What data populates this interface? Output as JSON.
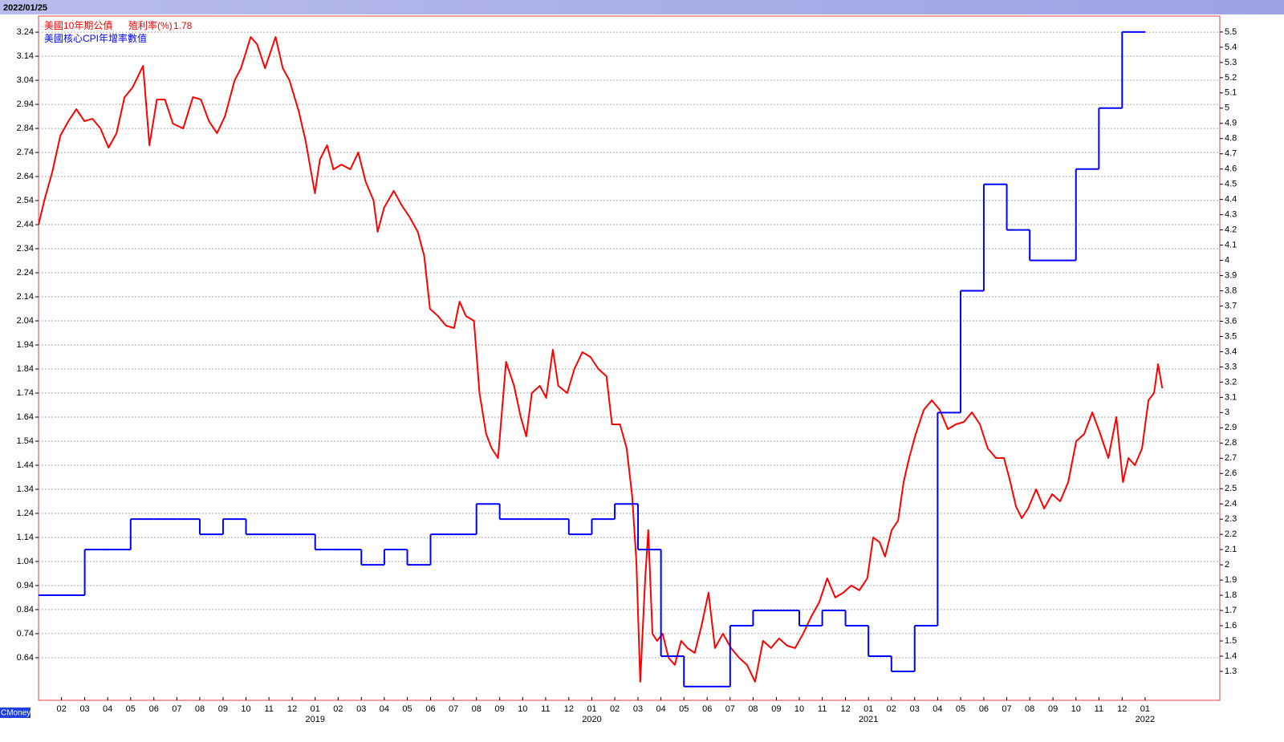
{
  "header": {
    "date": "2022/01/25",
    "brand": "CMoney"
  },
  "chart_data": {
    "type": "line",
    "xlim": [
      2018.0,
      2022.27
    ],
    "ylim": [
      0.463,
      3.307
    ],
    "y2lim": [
      1.11,
      5.605
    ],
    "grid": true,
    "yticks": [
      0.64,
      0.74,
      0.84,
      0.94,
      1.04,
      1.14,
      1.24,
      1.34,
      1.44,
      1.54,
      1.64,
      1.74,
      1.84,
      1.94,
      2.04,
      2.14,
      2.24,
      2.34,
      2.44,
      2.54,
      2.64,
      2.74,
      2.84,
      2.94,
      3.04,
      3.14,
      3.24
    ],
    "y2ticks": [
      1.3,
      1.4,
      1.5,
      1.6,
      1.7,
      1.8,
      1.9,
      2,
      2.1,
      2.2,
      2.3,
      2.4,
      2.5,
      2.6,
      2.7,
      2.8,
      2.9,
      3,
      3.1,
      3.2,
      3.3,
      3.4,
      3.5,
      3.6,
      3.7,
      3.8,
      3.9,
      4,
      4.1,
      4.2,
      4.3,
      4.4,
      4.5,
      4.6,
      4.7,
      4.8,
      4.9,
      5,
      5.1,
      5.2,
      5.3,
      5.4,
      5.5
    ],
    "xticks": [
      {
        "value": 2018.083,
        "label": "02"
      },
      {
        "value": 2018.167,
        "label": "03"
      },
      {
        "value": 2018.25,
        "label": "04"
      },
      {
        "value": 2018.333,
        "label": "05"
      },
      {
        "value": 2018.417,
        "label": "06"
      },
      {
        "value": 2018.5,
        "label": "07"
      },
      {
        "value": 2018.583,
        "label": "08"
      },
      {
        "value": 2018.667,
        "label": "09"
      },
      {
        "value": 2018.75,
        "label": "10"
      },
      {
        "value": 2018.833,
        "label": "11"
      },
      {
        "value": 2018.917,
        "label": "12"
      },
      {
        "value": 2019.0,
        "label": "01"
      },
      {
        "value": 2019.083,
        "label": "02"
      },
      {
        "value": 2019.167,
        "label": "03"
      },
      {
        "value": 2019.25,
        "label": "04"
      },
      {
        "value": 2019.333,
        "label": "05"
      },
      {
        "value": 2019.417,
        "label": "06"
      },
      {
        "value": 2019.5,
        "label": "07"
      },
      {
        "value": 2019.583,
        "label": "08"
      },
      {
        "value": 2019.667,
        "label": "09"
      },
      {
        "value": 2019.75,
        "label": "10"
      },
      {
        "value": 2019.833,
        "label": "11"
      },
      {
        "value": 2019.917,
        "label": "12"
      },
      {
        "value": 2020.0,
        "label": "01"
      },
      {
        "value": 2020.083,
        "label": "02"
      },
      {
        "value": 2020.167,
        "label": "03"
      },
      {
        "value": 2020.25,
        "label": "04"
      },
      {
        "value": 2020.333,
        "label": "05"
      },
      {
        "value": 2020.417,
        "label": "06"
      },
      {
        "value": 2020.5,
        "label": "07"
      },
      {
        "value": 2020.583,
        "label": "08"
      },
      {
        "value": 2020.667,
        "label": "09"
      },
      {
        "value": 2020.75,
        "label": "10"
      },
      {
        "value": 2020.833,
        "label": "11"
      },
      {
        "value": 2020.917,
        "label": "12"
      },
      {
        "value": 2021.0,
        "label": "01"
      },
      {
        "value": 2021.083,
        "label": "02"
      },
      {
        "value": 2021.167,
        "label": "03"
      },
      {
        "value": 2021.25,
        "label": "04"
      },
      {
        "value": 2021.333,
        "label": "05"
      },
      {
        "value": 2021.417,
        "label": "06"
      },
      {
        "value": 2021.5,
        "label": "07"
      },
      {
        "value": 2021.583,
        "label": "08"
      },
      {
        "value": 2021.667,
        "label": "09"
      },
      {
        "value": 2021.75,
        "label": "10"
      },
      {
        "value": 2021.833,
        "label": "11"
      },
      {
        "value": 2021.917,
        "label": "12"
      },
      {
        "value": 2022.0,
        "label": "01"
      }
    ],
    "year_labels": [
      2019,
      2020,
      2021,
      2022
    ],
    "series": [
      {
        "name": "美國10年期公債",
        "legend_field": "殖利率(%)",
        "legend_value": 1.78,
        "color": "#ff0000",
        "x": [
          2018.0,
          2018.021,
          2018.05,
          2018.079,
          2018.108,
          2018.137,
          2018.166,
          2018.195,
          2018.224,
          2018.253,
          2018.282,
          2018.311,
          2018.34,
          2018.378,
          2018.401,
          2018.428,
          2018.457,
          2018.486,
          2018.523,
          2018.558,
          2018.587,
          2018.616,
          2018.645,
          2018.674,
          2018.709,
          2018.732,
          2018.767,
          2018.79,
          2018.819,
          2018.857,
          2018.883,
          2018.907,
          2018.941,
          2018.965,
          2018.999,
          2019.017,
          2019.043,
          2019.066,
          2019.095,
          2019.127,
          2019.156,
          2019.182,
          2019.211,
          2019.226,
          2019.249,
          2019.284,
          2019.313,
          2019.342,
          2019.371,
          2019.394,
          2019.415,
          2019.444,
          2019.473,
          2019.502,
          2019.522,
          2019.545,
          2019.574,
          2019.594,
          2019.618,
          2019.638,
          2019.661,
          2019.69,
          2019.719,
          2019.743,
          2019.763,
          2019.783,
          2019.812,
          2019.835,
          2019.859,
          2019.879,
          2019.911,
          2019.937,
          2019.966,
          2019.995,
          2020.024,
          2020.053,
          2020.073,
          2020.102,
          2020.126,
          2020.146,
          2020.161,
          2020.175,
          2020.193,
          2020.204,
          2020.219,
          2020.236,
          2020.256,
          2020.277,
          2020.3,
          2020.323,
          2020.346,
          2020.372,
          2020.396,
          2020.422,
          2020.445,
          2020.474,
          2020.503,
          2020.532,
          2020.561,
          2020.59,
          2020.619,
          2020.648,
          2020.677,
          2020.706,
          2020.735,
          2020.764,
          2020.793,
          2020.822,
          2020.851,
          2020.88,
          2020.909,
          2020.938,
          2020.967,
          2020.996,
          2021.017,
          2021.04,
          2021.06,
          2021.084,
          2021.107,
          2021.127,
          2021.147,
          2021.171,
          2021.2,
          2021.229,
          2021.258,
          2021.287,
          2021.316,
          2021.345,
          2021.374,
          2021.403,
          2021.431,
          2021.461,
          2021.49,
          2021.513,
          2021.533,
          2021.554,
          2021.577,
          2021.606,
          2021.635,
          2021.664,
          2021.693,
          2021.722,
          2021.751,
          2021.78,
          2021.809,
          2021.838,
          2021.867,
          2021.896,
          2021.92,
          2021.94,
          2021.963,
          2021.989,
          2022.012,
          2022.032,
          2022.047,
          2022.062
        ],
        "values": [
          2.44,
          2.54,
          2.66,
          2.81,
          2.87,
          2.92,
          2.87,
          2.88,
          2.84,
          2.76,
          2.82,
          2.97,
          3.01,
          3.1,
          2.77,
          2.96,
          2.96,
          2.86,
          2.84,
          2.97,
          2.96,
          2.87,
          2.82,
          2.89,
          3.04,
          3.09,
          3.22,
          3.19,
          3.09,
          3.22,
          3.09,
          3.04,
          2.91,
          2.79,
          2.57,
          2.71,
          2.77,
          2.67,
          2.69,
          2.67,
          2.74,
          2.62,
          2.54,
          2.41,
          2.51,
          2.58,
          2.52,
          2.47,
          2.41,
          2.31,
          2.09,
          2.06,
          2.02,
          2.01,
          2.12,
          2.06,
          2.04,
          1.74,
          1.57,
          1.51,
          1.47,
          1.87,
          1.77,
          1.64,
          1.56,
          1.74,
          1.77,
          1.72,
          1.92,
          1.77,
          1.74,
          1.84,
          1.91,
          1.89,
          1.84,
          1.81,
          1.61,
          1.61,
          1.51,
          1.31,
          1.04,
          0.54,
          0.97,
          1.17,
          0.74,
          0.71,
          0.74,
          0.64,
          0.61,
          0.71,
          0.68,
          0.66,
          0.77,
          0.91,
          0.68,
          0.74,
          0.68,
          0.64,
          0.61,
          0.54,
          0.71,
          0.68,
          0.72,
          0.69,
          0.68,
          0.74,
          0.81,
          0.87,
          0.97,
          0.89,
          0.91,
          0.94,
          0.92,
          0.97,
          1.14,
          1.12,
          1.06,
          1.17,
          1.21,
          1.37,
          1.47,
          1.57,
          1.67,
          1.71,
          1.67,
          1.59,
          1.61,
          1.62,
          1.66,
          1.61,
          1.51,
          1.47,
          1.47,
          1.37,
          1.27,
          1.22,
          1.26,
          1.34,
          1.26,
          1.32,
          1.29,
          1.37,
          1.54,
          1.57,
          1.66,
          1.57,
          1.47,
          1.64,
          1.37,
          1.47,
          1.44,
          1.51,
          1.71,
          1.74,
          1.86,
          1.76
        ]
      },
      {
        "name": "美國核心CPI年增率",
        "legend_field": "數值",
        "color": "#0000ff",
        "axis": "y2",
        "x": [
          2018.0,
          2018.083,
          2018.167,
          2018.25,
          2018.333,
          2018.417,
          2018.5,
          2018.583,
          2018.667,
          2018.75,
          2018.833,
          2018.917,
          2019.0,
          2019.083,
          2019.167,
          2019.25,
          2019.333,
          2019.417,
          2019.5,
          2019.583,
          2019.667,
          2019.75,
          2019.833,
          2019.917,
          2020.0,
          2020.083,
          2020.167,
          2020.25,
          2020.333,
          2020.417,
          2020.5,
          2020.583,
          2020.667,
          2020.75,
          2020.833,
          2020.917,
          2021.0,
          2021.083,
          2021.167,
          2021.25,
          2021.333,
          2021.417,
          2021.5,
          2021.583,
          2021.667,
          2021.75,
          2021.833,
          2021.917
        ],
        "values": [
          1.8,
          1.8,
          2.1,
          2.1,
          2.3,
          2.3,
          2.3,
          2.2,
          2.3,
          2.2,
          2.2,
          2.2,
          2.1,
          2.1,
          2.0,
          2.1,
          2.0,
          2.2,
          2.2,
          2.4,
          2.3,
          2.3,
          2.3,
          2.2,
          2.3,
          2.4,
          2.1,
          1.4,
          1.2,
          1.2,
          1.6,
          1.7,
          1.7,
          1.6,
          1.7,
          1.6,
          1.4,
          1.3,
          1.6,
          3.0,
          3.8,
          4.5,
          4.2,
          4.0,
          4.0,
          4.6,
          5.0,
          5.5
        ]
      }
    ]
  }
}
